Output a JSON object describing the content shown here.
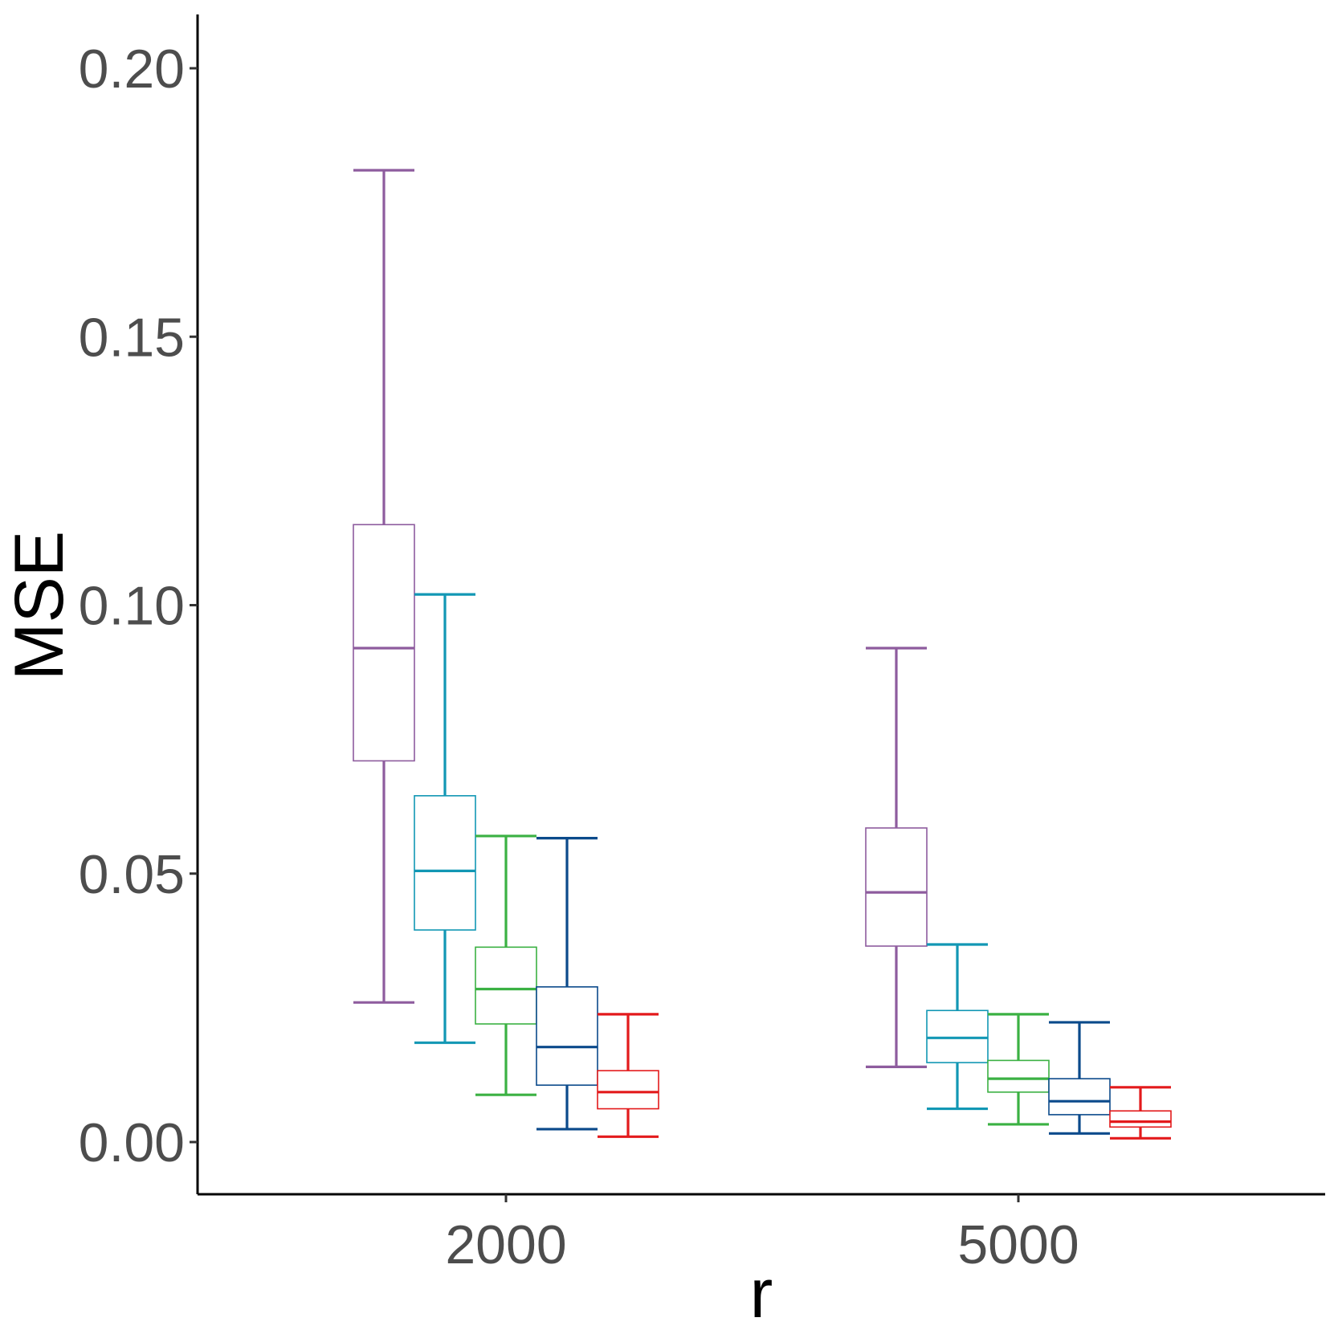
{
  "chart_data": {
    "type": "boxplot",
    "xlabel": "r",
    "ylabel": "MSE",
    "ylim": [
      -0.01,
      0.21
    ],
    "y_ticks": [
      "0.00",
      "0.05",
      "0.10",
      "0.15",
      "0.20"
    ],
    "y_tick_values": [
      0.0,
      0.05,
      0.1,
      0.15,
      0.2
    ],
    "categories": [
      "2000",
      "5000"
    ],
    "grid": false,
    "legend": "none",
    "colors": [
      "#8E5C9E",
      "#1297B4",
      "#3BB143",
      "#0B4A8B",
      "#E31A1C"
    ],
    "series": [
      {
        "values": [
          {
            "category": "2000",
            "whisker_low": 0.026,
            "q1": 0.071,
            "median": 0.092,
            "q3": 0.115,
            "whisker_high": 0.181
          },
          {
            "category": "5000",
            "whisker_low": 0.014,
            "q1": 0.0365,
            "median": 0.0465,
            "q3": 0.0585,
            "whisker_high": 0.092
          }
        ]
      },
      {
        "values": [
          {
            "category": "2000",
            "whisker_low": 0.0185,
            "q1": 0.0395,
            "median": 0.0505,
            "q3": 0.0645,
            "whisker_high": 0.102
          },
          {
            "category": "5000",
            "whisker_low": 0.0062,
            "q1": 0.0148,
            "median": 0.0194,
            "q3": 0.0245,
            "whisker_high": 0.0368
          }
        ]
      },
      {
        "values": [
          {
            "category": "2000",
            "whisker_low": 0.0088,
            "q1": 0.022,
            "median": 0.0285,
            "q3": 0.0363,
            "whisker_high": 0.057
          },
          {
            "category": "5000",
            "whisker_low": 0.0033,
            "q1": 0.0093,
            "median": 0.0118,
            "q3": 0.0152,
            "whisker_high": 0.0238
          }
        ]
      },
      {
        "values": [
          {
            "category": "2000",
            "whisker_low": 0.0024,
            "q1": 0.0106,
            "median": 0.0177,
            "q3": 0.0289,
            "whisker_high": 0.0566
          },
          {
            "category": "5000",
            "whisker_low": 0.0016,
            "q1": 0.0051,
            "median": 0.0076,
            "q3": 0.0118,
            "whisker_high": 0.0223
          }
        ]
      },
      {
        "values": [
          {
            "category": "2000",
            "whisker_low": 0.001,
            "q1": 0.0062,
            "median": 0.0093,
            "q3": 0.0133,
            "whisker_high": 0.0238
          },
          {
            "category": "5000",
            "whisker_low": 0.0007,
            "q1": 0.0028,
            "median": 0.0038,
            "q3": 0.0058,
            "whisker_high": 0.0102
          }
        ]
      }
    ]
  }
}
